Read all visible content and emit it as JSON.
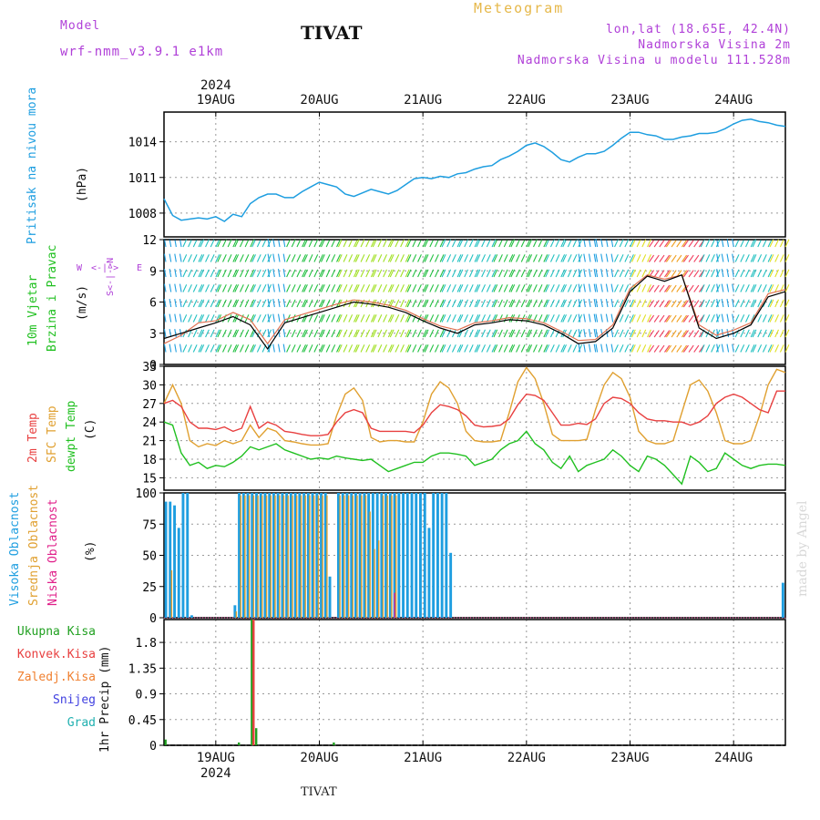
{
  "header": {
    "model_label": "Model",
    "model_name": "wrf-nmm_v3.9.1 e1km",
    "location_title": "TIVAT",
    "chart_kind": "Meteogram",
    "coords": "lon,lat (18.65E, 42.4N)",
    "elevation": "Nadmorska Visina 2m",
    "model_elevation": "Nadmorska Visina u modelu 111.528m"
  },
  "footer": {
    "location": "TIVAT",
    "credit": "made by Angel"
  },
  "colors": {
    "pressure": "#1e9ee0",
    "temp2m": "#e84040",
    "sfc": "#e0a030",
    "dewpt": "#20c020",
    "cloud_high": "#1e9ee0",
    "cloud_mid": "#e0a030",
    "cloud_low": "#e0208a",
    "rain_total": "#20a020",
    "rain_conv": "#e84040",
    "rain_frz": "#f08030",
    "snow": "#4040e0",
    "hail": "#20b0b0",
    "grid": "#999999",
    "wind_line": "#000000",
    "wind_gust": "#e07050"
  },
  "chart_data": [
    {
      "type": "line",
      "panel": "pressure",
      "ylabel_main": "Pritisak na nivou mora",
      "ylabel_unit": "(hPa)",
      "ylim": [
        1006.0,
        1016.5
      ],
      "yticks": [
        "1008",
        "1011",
        "1014"
      ],
      "ytick_values": [
        1008,
        1011,
        1014
      ],
      "x_hours": [
        0,
        2,
        4,
        6,
        8,
        10,
        12,
        14,
        16,
        18,
        20,
        22,
        24,
        26,
        28,
        30,
        32,
        34,
        36,
        38,
        40,
        42,
        44,
        46,
        48,
        50,
        52,
        54,
        56,
        58,
        60,
        62,
        64,
        66,
        68,
        70,
        72,
        74,
        76,
        78,
        80,
        82,
        84,
        86,
        88,
        90,
        92,
        94,
        96,
        98,
        100,
        102,
        104,
        106,
        108,
        110,
        112,
        114,
        116,
        118,
        120,
        122,
        124,
        126,
        128,
        130,
        132,
        134,
        136,
        138,
        140,
        142,
        144
      ],
      "values": [
        1009.2,
        1007.8,
        1007.4,
        1007.5,
        1007.6,
        1007.5,
        1007.7,
        1007.3,
        1007.9,
        1007.7,
        1008.8,
        1009.3,
        1009.6,
        1009.6,
        1009.3,
        1009.3,
        1009.8,
        1010.2,
        1010.6,
        1010.4,
        1010.2,
        1009.6,
        1009.4,
        1009.7,
        1010.0,
        1009.8,
        1009.6,
        1009.9,
        1010.4,
        1010.9,
        1011.0,
        1010.9,
        1011.1,
        1011.0,
        1011.3,
        1011.4,
        1011.7,
        1011.9,
        1012.0,
        1012.5,
        1012.8,
        1013.2,
        1013.7,
        1013.9,
        1013.6,
        1013.1,
        1012.5,
        1012.3,
        1012.7,
        1013.0,
        1013.0,
        1013.2,
        1013.7,
        1014.3,
        1014.8,
        1014.8,
        1014.6,
        1014.5,
        1014.2,
        1014.2,
        1014.4,
        1014.5,
        1014.7,
        1014.7,
        1014.8,
        1015.1,
        1015.5,
        1015.8,
        1015.9,
        1015.7,
        1015.6,
        1015.4,
        1015.3
      ]
    },
    {
      "type": "barbs",
      "panel": "wind",
      "ylabel_main": "10m Vjetar",
      "ylabel_sub": "Brzina i Pravac",
      "ylabel_unit": "(m/s)",
      "compass": {
        "w": "W",
        "e": "E",
        "n": "N",
        "s": "S"
      },
      "ylim": [
        0,
        12
      ],
      "yticks": [
        "0",
        "3",
        "6",
        "9",
        "12"
      ],
      "ytick_values": [
        0,
        3,
        6,
        9,
        12
      ],
      "x_hours": [
        0,
        4,
        8,
        12,
        16,
        20,
        24,
        28,
        32,
        36,
        40,
        44,
        48,
        52,
        56,
        60,
        64,
        68,
        72,
        76,
        80,
        84,
        88,
        92,
        96,
        100,
        104,
        108,
        112,
        116,
        120,
        124,
        128,
        132,
        136,
        140,
        144
      ],
      "speed": [
        2.5,
        3.0,
        3.5,
        4.0,
        4.6,
        3.8,
        1.5,
        4.0,
        4.5,
        5.0,
        5.5,
        6.0,
        5.8,
        5.5,
        5.0,
        4.2,
        3.5,
        3.0,
        3.8,
        4.0,
        4.3,
        4.2,
        3.8,
        3.0,
        2.0,
        2.2,
        3.5,
        7.0,
        8.5,
        8.0,
        8.6,
        3.5,
        2.5,
        3.0,
        3.8,
        6.5,
        7.0
      ],
      "gust": [
        2.0,
        2.8,
        4.0,
        4.2,
        5.0,
        4.3,
        2.0,
        4.3,
        4.8,
        5.3,
        5.8,
        6.2,
        6.0,
        5.7,
        5.2,
        4.4,
        3.7,
        3.3,
        4.0,
        4.2,
        4.5,
        4.4,
        4.0,
        3.2,
        2.3,
        2.4,
        3.8,
        7.3,
        8.6,
        8.2,
        8.6,
        3.8,
        2.8,
        3.3,
        4.0,
        6.8,
        7.2
      ]
    },
    {
      "type": "line",
      "panel": "temperature",
      "ylabel_t2m": "2m Temp",
      "ylabel_sfc": "SFC Temp",
      "ylabel_dew": "dewpt Temp",
      "ylabel_unit": "(C)",
      "ylim": [
        13,
        33
      ],
      "yticks": [
        "15",
        "18",
        "21",
        "24",
        "27",
        "30",
        "33"
      ],
      "ytick_values": [
        15,
        18,
        21,
        24,
        27,
        30,
        33
      ],
      "x_hours": [
        0,
        2,
        4,
        6,
        8,
        10,
        12,
        14,
        16,
        18,
        20,
        22,
        24,
        26,
        28,
        30,
        32,
        34,
        36,
        38,
        40,
        42,
        44,
        46,
        48,
        50,
        52,
        54,
        56,
        58,
        60,
        62,
        64,
        66,
        68,
        70,
        72,
        74,
        76,
        78,
        80,
        82,
        84,
        86,
        88,
        90,
        92,
        94,
        96,
        98,
        100,
        102,
        104,
        106,
        108,
        110,
        112,
        114,
        116,
        118,
        120,
        122,
        124,
        126,
        128,
        130,
        132,
        134,
        136,
        138,
        140,
        142,
        144
      ],
      "t2m": [
        27.0,
        27.5,
        26.5,
        24.0,
        23.0,
        23.0,
        22.8,
        23.2,
        22.5,
        23.0,
        26.5,
        23.0,
        24.0,
        23.5,
        22.5,
        22.3,
        22.0,
        21.8,
        21.8,
        22.0,
        24.0,
        25.5,
        26.0,
        25.5,
        23.0,
        22.5,
        22.5,
        22.5,
        22.5,
        22.3,
        23.5,
        25.5,
        26.8,
        26.5,
        26.0,
        25.0,
        23.5,
        23.2,
        23.3,
        23.5,
        24.5,
        26.8,
        28.5,
        28.3,
        27.5,
        25.5,
        23.5,
        23.5,
        23.8,
        23.6,
        24.5,
        27.0,
        28.0,
        27.8,
        27.0,
        25.5,
        24.5,
        24.2,
        24.2,
        24.0,
        24.0,
        23.5,
        24.0,
        25.0,
        27.0,
        28.0,
        28.5,
        28.0,
        27.0,
        26.0,
        25.5,
        29.0,
        29.0
      ],
      "sfc": [
        27.0,
        30.0,
        27.0,
        21.0,
        20.0,
        20.5,
        20.2,
        21.0,
        20.5,
        21.0,
        23.5,
        21.5,
        23.0,
        22.5,
        21.0,
        20.8,
        20.5,
        20.3,
        20.3,
        20.5,
        25.0,
        28.5,
        29.5,
        27.5,
        21.5,
        20.8,
        21.0,
        21.0,
        20.8,
        20.8,
        24.0,
        28.5,
        30.5,
        29.5,
        27.0,
        22.5,
        21.0,
        20.8,
        20.8,
        21.0,
        25.5,
        30.5,
        32.8,
        31.0,
        27.0,
        22.0,
        21.0,
        21.0,
        21.0,
        21.2,
        26.0,
        30.0,
        32.0,
        31.0,
        28.0,
        22.5,
        21.0,
        20.5,
        20.5,
        21.0,
        25.5,
        30.0,
        30.8,
        29.0,
        25.5,
        21.0,
        20.5,
        20.5,
        21.0,
        25.0,
        30.0,
        32.5,
        32.0
      ],
      "dew": [
        24.0,
        23.5,
        19.0,
        17.0,
        17.5,
        16.5,
        17.0,
        16.8,
        17.5,
        18.5,
        20.0,
        19.5,
        20.0,
        20.5,
        19.5,
        19.0,
        18.5,
        18.0,
        18.2,
        18.0,
        18.5,
        18.2,
        18.0,
        17.8,
        18.0,
        17.0,
        16.0,
        16.5,
        17.0,
        17.5,
        17.5,
        18.5,
        19.0,
        19.0,
        18.8,
        18.5,
        17.0,
        17.5,
        18.0,
        19.5,
        20.5,
        21.0,
        22.5,
        20.5,
        19.5,
        17.5,
        16.5,
        18.5,
        16.0,
        17.0,
        17.5,
        18.0,
        19.5,
        18.5,
        17.0,
        16.0,
        18.5,
        18.0,
        17.0,
        15.5,
        14.0,
        18.5,
        17.5,
        16.0,
        16.5,
        19.0,
        18.0,
        17.0,
        16.5,
        17.0,
        17.2,
        17.2,
        17.0
      ]
    },
    {
      "type": "bar",
      "panel": "clouds",
      "ylabel_high": "Visoka Oblacnost",
      "ylabel_mid": "Srednja Oblacnost",
      "ylabel_low": "Niska Oblacnost",
      "ylabel_unit": "(%)",
      "ylim": [
        0,
        100
      ],
      "yticks": [
        "0",
        "25",
        "50",
        "75",
        "100"
      ],
      "ytick_values": [
        0,
        25,
        50,
        75,
        100
      ],
      "x_hours": [
        0,
        1,
        2,
        3,
        4,
        5,
        6,
        16,
        17,
        18,
        19,
        20,
        21,
        22,
        23,
        24,
        25,
        26,
        27,
        28,
        29,
        30,
        31,
        32,
        33,
        34,
        35,
        36,
        37,
        38,
        40,
        41,
        42,
        43,
        44,
        45,
        46,
        47,
        48,
        49,
        50,
        51,
        52,
        53,
        54,
        55,
        56,
        57,
        58,
        59,
        60,
        61,
        62,
        63,
        64,
        65,
        66,
        143
      ],
      "high": [
        93,
        93,
        90,
        72,
        100,
        100,
        2,
        10,
        100,
        100,
        100,
        100,
        100,
        100,
        100,
        100,
        100,
        100,
        100,
        100,
        100,
        100,
        100,
        100,
        100,
        100,
        100,
        100,
        100,
        33,
        100,
        100,
        100,
        100,
        100,
        100,
        100,
        100,
        100,
        100,
        100,
        100,
        100,
        100,
        100,
        100,
        100,
        100,
        100,
        100,
        100,
        72,
        100,
        100,
        100,
        100,
        52,
        28
      ],
      "mid": [
        0,
        38,
        0,
        0,
        0,
        0,
        0,
        5,
        98,
        98,
        98,
        98,
        98,
        98,
        98,
        98,
        98,
        98,
        98,
        98,
        98,
        98,
        98,
        98,
        98,
        98,
        98,
        98,
        98,
        0,
        98,
        98,
        98,
        98,
        98,
        98,
        98,
        85,
        55,
        62,
        98,
        98,
        98,
        98,
        0,
        0,
        0,
        0,
        0,
        0,
        0,
        0,
        0,
        0,
        0,
        0,
        0,
        0
      ],
      "low": [
        0,
        0,
        0,
        0,
        0,
        0,
        0,
        0,
        0,
        0,
        0,
        0,
        0,
        0,
        0,
        0,
        0,
        0,
        0,
        0,
        0,
        0,
        0,
        0,
        0,
        0,
        0,
        0,
        0,
        0,
        0,
        0,
        0,
        0,
        0,
        0,
        0,
        0,
        0,
        0,
        0,
        0,
        0,
        20,
        0,
        0,
        0,
        0,
        0,
        0,
        0,
        0,
        0,
        0,
        0,
        0,
        0,
        0
      ]
    },
    {
      "type": "bar",
      "panel": "precip",
      "legend": [
        "Ukupna Kisa",
        "Konvek.Kisa",
        "Zaledj.Kisa",
        "Snijeg",
        "Grad"
      ],
      "ylabel_unit": "1hr Precip (mm)",
      "ylim": [
        0,
        2.2
      ],
      "yticks": [
        "0",
        "0.45",
        "0.9",
        "1.35",
        "1.8"
      ],
      "ytick_values": [
        0,
        0.45,
        0.9,
        1.35,
        1.8
      ],
      "x_hours": [
        0,
        17,
        20,
        21,
        39
      ],
      "total": [
        0.1,
        0.05,
        2.2,
        0.3,
        0.05
      ],
      "convective": [
        0.0,
        0.0,
        2.2,
        0.0,
        0.0
      ]
    }
  ],
  "x_axis": {
    "labels": [
      "19AUG",
      "20AUG",
      "21AUG",
      "22AUG",
      "23AUG",
      "24AUG"
    ],
    "label_hours": [
      12,
      36,
      60,
      84,
      108,
      132
    ],
    "year": "2024",
    "range_hours": [
      0,
      144
    ]
  }
}
